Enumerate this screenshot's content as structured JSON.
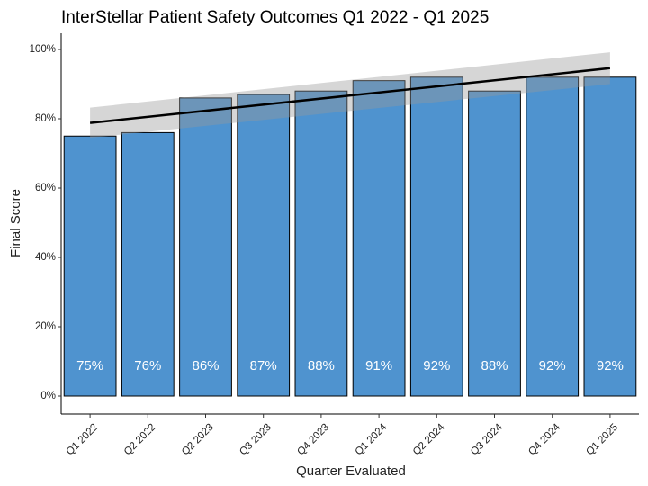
{
  "chart_data": {
    "type": "bar",
    "title": "InterStellar Patient Safety Outcomes Q1 2022 - Q1 2025",
    "xlabel": "Quarter Evaluated",
    "ylabel": "Final Score",
    "categories": [
      "Q1 2022",
      "Q2 2022",
      "Q2 2023",
      "Q3 2023",
      "Q4 2023",
      "Q1 2024",
      "Q2 2024",
      "Q3 2024",
      "Q4 2024",
      "Q1 2025"
    ],
    "values": [
      75,
      76,
      86,
      87,
      88,
      91,
      92,
      88,
      92,
      92
    ],
    "bar_labels": [
      "75%",
      "76%",
      "86%",
      "87%",
      "88%",
      "91%",
      "92%",
      "88%",
      "92%",
      "92%"
    ],
    "ylim": [
      0,
      100
    ],
    "yticks": [
      0,
      20,
      40,
      60,
      80,
      100
    ],
    "ytick_labels": [
      "0%",
      "20%",
      "40%",
      "60%",
      "80%",
      "100%"
    ],
    "trend": {
      "type": "linear-fit",
      "start": 78.8,
      "end": 94.6,
      "ci_start": [
        74.5,
        83.2
      ],
      "ci_end": [
        90.0,
        99.2
      ]
    },
    "bar_color": "#4f93cf",
    "bar_edge_color": "#000000",
    "trend_color": "#000000",
    "band_color": "#999999",
    "grid": false
  }
}
